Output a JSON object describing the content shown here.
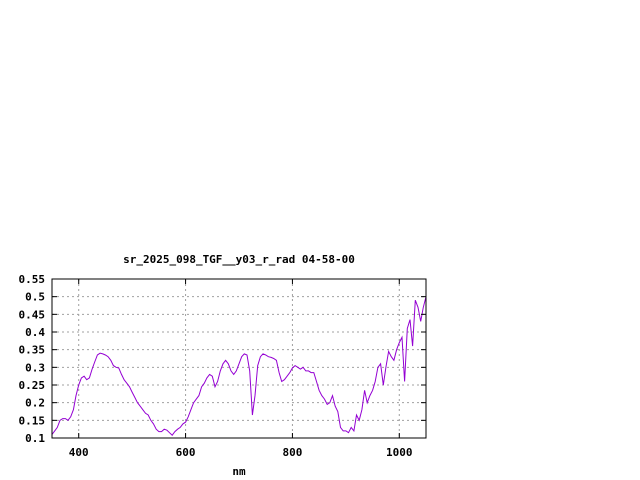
{
  "chart_data": {
    "type": "line",
    "title": "sr_2025_098_TGF__y03_r_rad 04-58-00",
    "xlabel": "nm",
    "ylabel": "",
    "xlim": [
      350,
      1050
    ],
    "ylim": [
      0.1,
      0.55
    ],
    "xticks": [
      400,
      600,
      800,
      1000
    ],
    "yticks": [
      "0.1",
      "0.15",
      "0.2",
      "0.25",
      "0.3",
      "0.35",
      "0.4",
      "0.45",
      "0.5",
      "0.55"
    ],
    "grid": true,
    "legend": "none",
    "line_color": "#9400d3",
    "series": [
      {
        "x": [
          350,
          355,
          360,
          365,
          370,
          375,
          380,
          385,
          390,
          395,
          400,
          405,
          410,
          415,
          420,
          425,
          430,
          435,
          440,
          445,
          450,
          455,
          460,
          465,
          470,
          475,
          480,
          485,
          490,
          495,
          500,
          505,
          510,
          515,
          520,
          525,
          530,
          535,
          540,
          545,
          550,
          555,
          560,
          565,
          570,
          575,
          580,
          585,
          590,
          595,
          600,
          605,
          610,
          615,
          620,
          625,
          630,
          635,
          640,
          645,
          650,
          655,
          660,
          665,
          670,
          675,
          680,
          685,
          690,
          695,
          700,
          705,
          710,
          715,
          720,
          725,
          730,
          735,
          740,
          745,
          750,
          755,
          760,
          765,
          770,
          775,
          780,
          785,
          790,
          795,
          800,
          805,
          810,
          815,
          820,
          825,
          830,
          835,
          840,
          845,
          850,
          855,
          860,
          865,
          870,
          875,
          880,
          885,
          890,
          895,
          900,
          905,
          910,
          915,
          920,
          925,
          930,
          935,
          940,
          945,
          950,
          955,
          960,
          965,
          970,
          975,
          980,
          985,
          990,
          995,
          1000,
          1005,
          1010,
          1015,
          1020,
          1025,
          1030,
          1035,
          1040,
          1045,
          1050
        ],
        "values": [
          0.11,
          0.12,
          0.13,
          0.15,
          0.155,
          0.155,
          0.15,
          0.16,
          0.18,
          0.22,
          0.25,
          0.27,
          0.275,
          0.265,
          0.27,
          0.295,
          0.315,
          0.335,
          0.34,
          0.338,
          0.335,
          0.33,
          0.32,
          0.305,
          0.3,
          0.298,
          0.28,
          0.265,
          0.255,
          0.245,
          0.23,
          0.215,
          0.2,
          0.19,
          0.18,
          0.17,
          0.165,
          0.15,
          0.14,
          0.125,
          0.118,
          0.118,
          0.125,
          0.122,
          0.115,
          0.108,
          0.118,
          0.125,
          0.13,
          0.14,
          0.145,
          0.16,
          0.18,
          0.2,
          0.21,
          0.22,
          0.245,
          0.255,
          0.27,
          0.28,
          0.275,
          0.245,
          0.26,
          0.29,
          0.31,
          0.32,
          0.31,
          0.29,
          0.28,
          0.29,
          0.31,
          0.33,
          0.338,
          0.335,
          0.29,
          0.165,
          0.22,
          0.305,
          0.33,
          0.338,
          0.335,
          0.33,
          0.328,
          0.325,
          0.32,
          0.285,
          0.26,
          0.265,
          0.275,
          0.285,
          0.298,
          0.305,
          0.3,
          0.295,
          0.3,
          0.29,
          0.29,
          0.285,
          0.285,
          0.26,
          0.235,
          0.22,
          0.21,
          0.195,
          0.2,
          0.22,
          0.19,
          0.175,
          0.13,
          0.12,
          0.12,
          0.115,
          0.13,
          0.12,
          0.165,
          0.15,
          0.18,
          0.235,
          0.2,
          0.22,
          0.235,
          0.26,
          0.3,
          0.31,
          0.25,
          0.3,
          0.345,
          0.33,
          0.32,
          0.35,
          0.37,
          0.385,
          0.26,
          0.41,
          0.435,
          0.36,
          0.49,
          0.47,
          0.43,
          0.47,
          0.5
        ]
      }
    ]
  }
}
